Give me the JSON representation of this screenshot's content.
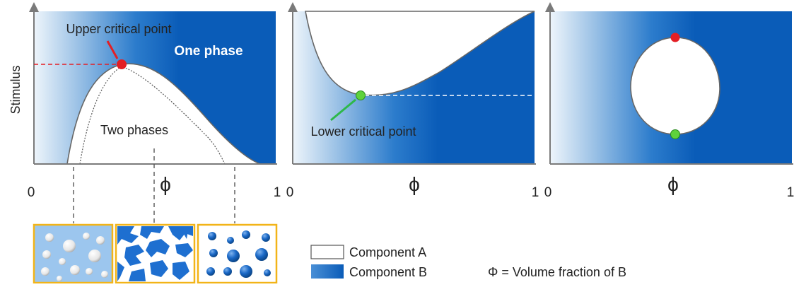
{
  "axes": {
    "y_label": "Stimulus",
    "x_label": "ϕ",
    "tick_zero": "0",
    "tick_one": "1"
  },
  "panel1": {
    "upper_critical_point_label": "Upper critical point",
    "one_phase_label": "One phase",
    "two_phases_label": "Two phases"
  },
  "panel2": {
    "lower_critical_point_label": "Lower critical point"
  },
  "legend": {
    "component_a": "Component A",
    "component_b": "Component B",
    "phi_definition": "Φ = Volume fraction of B"
  },
  "colors": {
    "component_b": "#0a5cb8",
    "gradient_light": "#e8f1fa",
    "upper_critical_point": "#e31e24",
    "lower_critical_point": "#5fd23c",
    "inset_border": "#f2b418"
  }
}
